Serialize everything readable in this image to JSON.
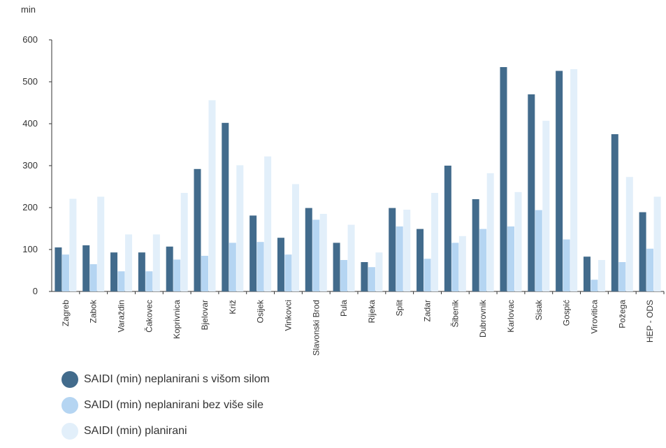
{
  "chart_data": {
    "type": "bar",
    "title": "",
    "ylabel": "min",
    "xlabel": "",
    "ylim": [
      0,
      600
    ],
    "yticks": [
      0,
      100,
      200,
      300,
      400,
      500,
      600
    ],
    "categories": [
      "Zagreb",
      "Zabok",
      "Varaždin",
      "Čakovec",
      "Koprivnica",
      "Bjelovar",
      "Križ",
      "Osijek",
      "Vinkovci",
      "Slavonski Brod",
      "Pula",
      "Rijeka",
      "Split",
      "Zadar",
      "Šibenik",
      "Dubrovnik",
      "Karlovac",
      "Sisak",
      "Gospić",
      "Virovitica",
      "Požega",
      "HEP - ODS"
    ],
    "series": [
      {
        "name": "SAIDI (min) neplanirani s višom silom",
        "color": "#426b8c",
        "values": [
          105,
          110,
          93,
          93,
          107,
          292,
          402,
          181,
          128,
          199,
          116,
          70,
          199,
          149,
          300,
          220,
          535,
          470,
          526,
          83,
          375,
          189
        ]
      },
      {
        "name": "SAIDI (min) neplanirani bez više sile",
        "color": "#b5d5f2",
        "values": [
          88,
          65,
          48,
          48,
          76,
          85,
          116,
          118,
          88,
          171,
          75,
          58,
          155,
          78,
          116,
          149,
          155,
          194,
          124,
          28,
          70,
          102
        ]
      },
      {
        "name": "SAIDI (min) planirani",
        "color": "#e2effa",
        "values": [
          221,
          226,
          136,
          136,
          235,
          456,
          301,
          322,
          256,
          185,
          159,
          93,
          195,
          235,
          132,
          282,
          237,
          407,
          530,
          75,
          273,
          226
        ]
      }
    ],
    "legend_position": "bottom-left",
    "grid": false
  }
}
